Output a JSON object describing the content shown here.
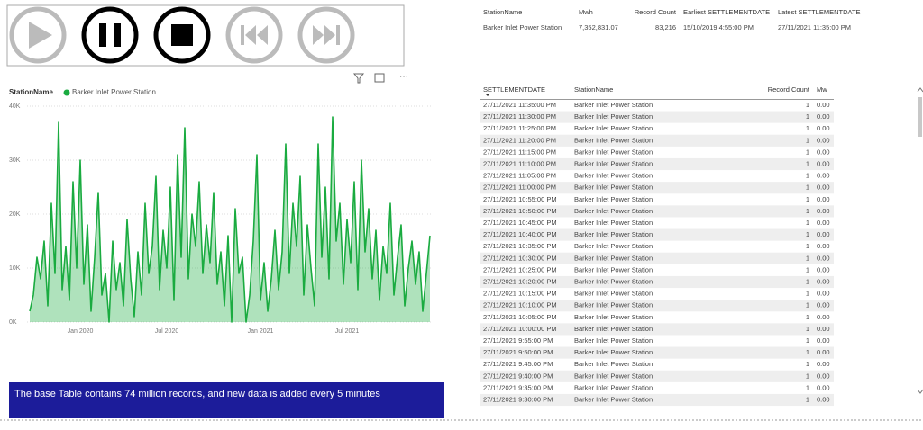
{
  "chart_data": {
    "type": "area",
    "legend_title": "StationName",
    "series": [
      {
        "name": "Barker Inlet Power Station",
        "color": "#1aab40",
        "values": [
          2000,
          5000,
          12000,
          8000,
          15000,
          3000,
          22000,
          9000,
          37000,
          6000,
          14000,
          4000,
          26000,
          10000,
          30000,
          7000,
          18000,
          2000,
          12000,
          24000,
          5000,
          9000,
          0,
          15000,
          6000,
          11000,
          3000,
          19000,
          8000,
          1000,
          13000,
          5000,
          22000,
          9000,
          14000,
          27000,
          6000,
          17000,
          10000,
          25000,
          4000,
          31000,
          12000,
          36000,
          8000,
          20000,
          14000,
          26000,
          9000,
          18000,
          11000,
          24000,
          7000,
          13000,
          3000,
          16000,
          0,
          21000,
          9000,
          12000,
          0,
          5000,
          15000,
          31000,
          4000,
          11000,
          2000,
          8000,
          17000,
          6000,
          13000,
          33000,
          9000,
          22000,
          14000,
          27000,
          5000,
          18000,
          10000,
          3000,
          33000,
          12000,
          25000,
          8000,
          38000,
          15000,
          22000,
          7000,
          19000,
          11000,
          26000,
          6000,
          30000,
          13000,
          21000,
          8000,
          17000,
          4000,
          14000,
          9000,
          22000,
          5000,
          12000,
          18000,
          3000,
          10000,
          15000,
          7000,
          13000,
          2000,
          9000,
          16000
        ]
      }
    ],
    "categories": [
      null,
      null,
      null,
      null,
      null,
      null,
      null,
      null,
      null,
      null,
      null,
      null,
      null,
      null,
      "Jan 2020",
      null,
      null,
      null,
      null,
      null,
      null,
      null,
      null,
      null,
      null,
      null,
      null,
      null,
      null,
      null,
      null,
      null,
      null,
      null,
      null,
      null,
      null,
      null,
      "Jul 2020",
      null,
      null,
      null,
      null,
      null,
      null,
      null,
      null,
      null,
      null,
      null,
      null,
      null,
      null,
      null,
      null,
      null,
      null,
      null,
      null,
      null,
      null,
      null,
      null,
      null,
      "Jan 2021",
      null,
      null,
      null,
      null,
      null,
      null,
      null,
      null,
      null,
      null,
      null,
      null,
      null,
      null,
      null,
      null,
      null,
      null,
      null,
      null,
      null,
      null,
      null,
      "Jul 2021",
      null,
      null,
      null,
      null,
      null,
      null,
      null,
      null,
      null,
      null,
      null,
      null,
      null,
      null,
      null,
      null,
      null,
      null,
      null,
      null,
      null,
      null,
      null
    ],
    "ylim": [
      0,
      40000
    ],
    "yticks": [
      {
        "value": 0,
        "label": "0K"
      },
      {
        "value": 10000,
        "label": "10K"
      },
      {
        "value": 20000,
        "label": "20K"
      },
      {
        "value": 30000,
        "label": "30K"
      },
      {
        "value": 40000,
        "label": "40K"
      }
    ],
    "grid": true
  },
  "summary_table": {
    "headers": [
      "StationName",
      "Mwh",
      "Record Count",
      "Earliest SETTLEMENTDATE",
      "Latest SETTLEMENTDATE"
    ],
    "rows": [
      [
        "Barker Inlet Power Station",
        "7,352,831.07",
        "83,216",
        "15/10/2019 4:55:00 PM",
        "27/11/2021 11:35:00 PM"
      ]
    ]
  },
  "detail_table": {
    "headers": [
      "SETTLEMENTDATE",
      "StationName",
      "Record Count",
      "Mw"
    ],
    "rows": [
      [
        "27/11/2021 11:35:00 PM",
        "Barker Inlet Power Station",
        "1",
        "0.00"
      ],
      [
        "27/11/2021 11:30:00 PM",
        "Barker Inlet Power Station",
        "1",
        "0.00"
      ],
      [
        "27/11/2021 11:25:00 PM",
        "Barker Inlet Power Station",
        "1",
        "0.00"
      ],
      [
        "27/11/2021 11:20:00 PM",
        "Barker Inlet Power Station",
        "1",
        "0.00"
      ],
      [
        "27/11/2021 11:15:00 PM",
        "Barker Inlet Power Station",
        "1",
        "0.00"
      ],
      [
        "27/11/2021 11:10:00 PM",
        "Barker Inlet Power Station",
        "1",
        "0.00"
      ],
      [
        "27/11/2021 11:05:00 PM",
        "Barker Inlet Power Station",
        "1",
        "0.00"
      ],
      [
        "27/11/2021 11:00:00 PM",
        "Barker Inlet Power Station",
        "1",
        "0.00"
      ],
      [
        "27/11/2021 10:55:00 PM",
        "Barker Inlet Power Station",
        "1",
        "0.00"
      ],
      [
        "27/11/2021 10:50:00 PM",
        "Barker Inlet Power Station",
        "1",
        "0.00"
      ],
      [
        "27/11/2021 10:45:00 PM",
        "Barker Inlet Power Station",
        "1",
        "0.00"
      ],
      [
        "27/11/2021 10:40:00 PM",
        "Barker Inlet Power Station",
        "1",
        "0.00"
      ],
      [
        "27/11/2021 10:35:00 PM",
        "Barker Inlet Power Station",
        "1",
        "0.00"
      ],
      [
        "27/11/2021 10:30:00 PM",
        "Barker Inlet Power Station",
        "1",
        "0.00"
      ],
      [
        "27/11/2021 10:25:00 PM",
        "Barker Inlet Power Station",
        "1",
        "0.00"
      ],
      [
        "27/11/2021 10:20:00 PM",
        "Barker Inlet Power Station",
        "1",
        "0.00"
      ],
      [
        "27/11/2021 10:15:00 PM",
        "Barker Inlet Power Station",
        "1",
        "0.00"
      ],
      [
        "27/11/2021 10:10:00 PM",
        "Barker Inlet Power Station",
        "1",
        "0.00"
      ],
      [
        "27/11/2021 10:05:00 PM",
        "Barker Inlet Power Station",
        "1",
        "0.00"
      ],
      [
        "27/11/2021 10:00:00 PM",
        "Barker Inlet Power Station",
        "1",
        "0.00"
      ],
      [
        "27/11/2021 9:55:00 PM",
        "Barker Inlet Power Station",
        "1",
        "0.00"
      ],
      [
        "27/11/2021 9:50:00 PM",
        "Barker Inlet Power Station",
        "1",
        "0.00"
      ],
      [
        "27/11/2021 9:45:00 PM",
        "Barker Inlet Power Station",
        "1",
        "0.00"
      ],
      [
        "27/11/2021 9:40:00 PM",
        "Barker Inlet Power Station",
        "1",
        "0.00"
      ],
      [
        "27/11/2021 9:35:00 PM",
        "Barker Inlet Power Station",
        "1",
        "0.00"
      ],
      [
        "27/11/2021 9:30:00 PM",
        "Barker Inlet Power Station",
        "1",
        "0.00"
      ]
    ]
  },
  "banner": {
    "text": "The base Table contains 74 million records, and new data is added every 5 minutes"
  }
}
